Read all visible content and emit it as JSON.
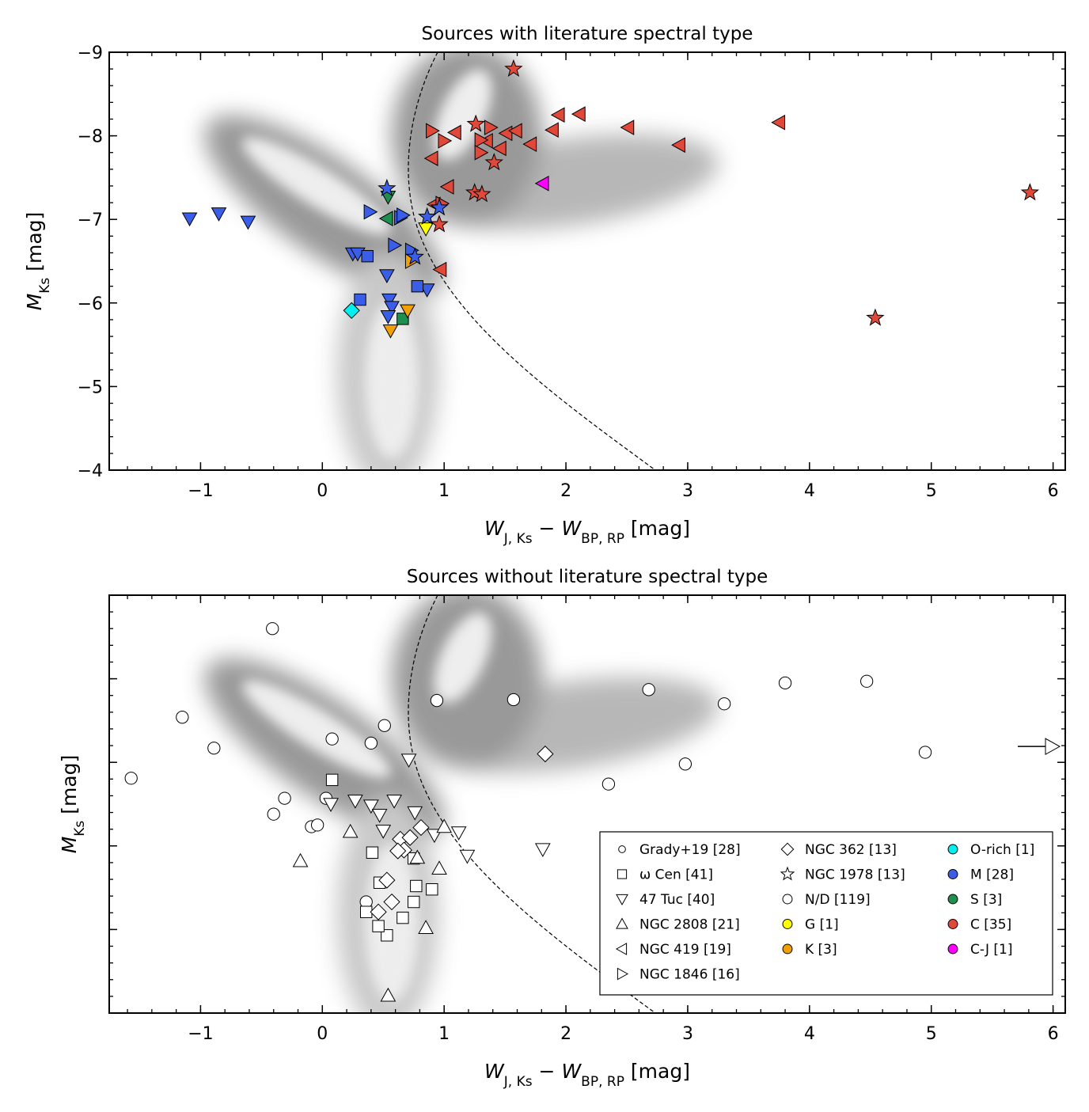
{
  "chart_data": [
    {
      "type": "scatter",
      "title": "Sources with literature spectral type",
      "xlabel": [
        {
          "text": "W"
        },
        {
          "text": "J, Ks",
          "sub": true
        },
        {
          "text": " − "
        },
        {
          "text": "W"
        },
        {
          "text": "BP, RP",
          "sub": true
        },
        {
          "text": " [mag]"
        }
      ],
      "ylabel": [
        {
          "text": "M"
        },
        {
          "text": "Ks",
          "sub": true
        },
        {
          "text": " [mag]"
        }
      ],
      "xlim": [
        -1.75,
        6.1
      ],
      "ylim": [
        -4,
        -9
      ],
      "xticks": [
        {
          "value": -1,
          "label": "−1"
        },
        0,
        1,
        2,
        3,
        4,
        5,
        6
      ],
      "yticks": [
        {
          "value": -9,
          "label": "−9"
        },
        {
          "value": -8,
          "label": "−8"
        },
        {
          "value": -7,
          "label": "−7"
        },
        {
          "value": -6,
          "label": "−6"
        },
        {
          "value": -5,
          "label": "−5"
        },
        {
          "value": -4,
          "label": "−4"
        }
      ],
      "ytick_labels": true,
      "series": [
        {
          "marker": "left",
          "color": "#e0483a",
          "x": [
            1.94,
            2.11,
            2.51,
            2.93,
            3.75,
            1.09,
            0.9,
            1.35,
            1.51,
            1.59,
            1.89,
            1.71,
            1.46,
            1.03,
            0.97,
            0.92
          ],
          "values": [
            -8.25,
            -8.26,
            -8.1,
            -7.89,
            -8.16,
            -8.04,
            -7.73,
            -7.94,
            -8.03,
            -8.06,
            -8.07,
            -7.9,
            -7.85,
            -7.39,
            -6.4,
            -7.18
          ]
        },
        {
          "marker": "right",
          "color": "#e0483a",
          "x": [
            0.9,
            1.0,
            1.3,
            1.3,
            1.38,
            0.98
          ],
          "values": [
            -8.06,
            -7.94,
            -7.95,
            -7.8,
            -8.1,
            -7.19
          ]
        },
        {
          "marker": "left",
          "color": "#ff00ff",
          "x": [
            1.81
          ],
          "values": [
            -7.43
          ]
        },
        {
          "marker": "down",
          "color": "#3a5ee8",
          "x": [
            -1.09,
            -0.85,
            -0.61,
            0.53,
            0.55,
            0.57,
            0.54,
            0.86,
            0.25,
            0.29
          ],
          "values": [
            -7.01,
            -7.07,
            -6.97,
            -6.33,
            -6.04,
            -5.95,
            -5.84,
            -6.16,
            -6.59,
            -6.59
          ]
        },
        {
          "marker": "right",
          "color": "#3a5ee8",
          "x": [
            0.39,
            0.64,
            0.59,
            0.73,
            0.66
          ],
          "values": [
            -7.09,
            -7.02,
            -6.69,
            -6.63,
            -7.05
          ]
        },
        {
          "marker": "square",
          "color": "#3a5ee8",
          "x": [
            0.37,
            0.31,
            0.78
          ],
          "values": [
            -6.56,
            -6.04,
            -6.2
          ]
        },
        {
          "marker": "left",
          "color": "#1f8f4f",
          "x": [
            0.53
          ],
          "values": [
            -7.01
          ]
        },
        {
          "marker": "down",
          "color": "#1f8f4f",
          "x": [
            0.54
          ],
          "values": [
            -7.27
          ]
        },
        {
          "marker": "square",
          "color": "#1f8f4f",
          "x": [
            0.66
          ],
          "values": [
            -5.81
          ]
        },
        {
          "marker": "diamond",
          "color": "#00f0f0",
          "x": [
            0.24
          ],
          "values": [
            -5.91
          ]
        },
        {
          "marker": "down",
          "color": "#ffff00",
          "x": [
            0.85
          ],
          "values": [
            -6.89
          ]
        },
        {
          "marker": "down",
          "color": "#f0a000",
          "x": [
            0.56,
            0.7
          ],
          "values": [
            -5.67,
            -5.91
          ]
        },
        {
          "marker": "right",
          "color": "#f0a000",
          "x": [
            0.73
          ],
          "values": [
            -6.5
          ]
        },
        {
          "marker": "star",
          "color": "#3a5ee8",
          "x": [
            0.53,
            0.86,
            0.96,
            0.76
          ],
          "values": [
            -7.37,
            -7.03,
            -7.14,
            -6.55
          ]
        },
        {
          "marker": "star",
          "color": "#e0483a",
          "x": [
            1.57,
            1.26,
            1.41,
            1.25,
            1.31,
            0.96,
            5.81,
            4.54
          ],
          "values": [
            -8.8,
            -8.14,
            -7.68,
            -7.32,
            -7.3,
            -6.94,
            -7.32,
            -5.82
          ]
        }
      ]
    },
    {
      "type": "scatter",
      "title": "Sources without literature spectral type",
      "xlabel": [
        {
          "text": "W"
        },
        {
          "text": "J, Ks",
          "sub": true
        },
        {
          "text": " − "
        },
        {
          "text": "W"
        },
        {
          "text": "BP, RP",
          "sub": true
        },
        {
          "text": " [mag]"
        }
      ],
      "ylabel": [
        {
          "text": "M"
        },
        {
          "text": "Ks",
          "sub": true
        },
        {
          "text": " [mag]"
        }
      ],
      "xlim": [
        -1.75,
        6.1
      ],
      "ylim": [
        -4,
        -9
      ],
      "xticks": [
        {
          "value": -1,
          "label": "−1"
        },
        0,
        1,
        2,
        3,
        4,
        5,
        6
      ],
      "yticks": [
        -9,
        -8,
        -7,
        -6,
        -5,
        -4
      ],
      "ytick_labels": false,
      "series": [
        {
          "marker": "circle",
          "color": "#ffffff",
          "x": [
            -0.41,
            -1.15,
            -0.89,
            -1.57,
            0.08,
            0.4,
            0.51,
            0.94,
            1.57,
            -0.31,
            -0.4,
            -0.09,
            -0.04,
            0.03,
            0.36,
            2.35,
            2.68,
            2.98,
            3.3,
            3.8,
            4.47,
            4.95
          ],
          "values": [
            -8.6,
            -7.54,
            -7.17,
            -6.81,
            -7.28,
            -7.23,
            -7.44,
            -7.74,
            -7.75,
            -6.57,
            -6.38,
            -6.23,
            -6.25,
            -6.57,
            -5.33,
            -6.74,
            -7.87,
            -6.98,
            -7.7,
            -7.95,
            -7.97,
            -7.12
          ]
        },
        {
          "marker": "square",
          "color": "#ffffff",
          "x": [
            0.08,
            0.41,
            0.9,
            0.53,
            0.36,
            0.46,
            0.75,
            0.66,
            0.75,
            0.47,
            0.77
          ],
          "values": [
            -6.79,
            -5.92,
            -5.48,
            -4.93,
            -5.21,
            -5.04,
            -5.85,
            -5.14,
            -5.33,
            -5.56,
            -5.52
          ]
        },
        {
          "marker": "down",
          "color": "#ffffff",
          "x": [
            0.71,
            0.07,
            0.27,
            0.4,
            0.47,
            0.59,
            0.76,
            0.92,
            1.12,
            1.19,
            1.81,
            0.5
          ],
          "values": [
            -7.03,
            -6.5,
            -6.54,
            -6.48,
            -6.37,
            -6.54,
            -6.4,
            -6.13,
            -6.16,
            -5.88,
            -5.96,
            -6.18
          ]
        },
        {
          "marker": "up",
          "color": "#ffffff",
          "x": [
            -0.18,
            0.23,
            1.0,
            0.96,
            0.85,
            0.54,
            0.78
          ],
          "values": [
            -5.82,
            -6.17,
            -6.23,
            -5.73,
            -5.02,
            -4.21,
            -5.86
          ]
        },
        {
          "marker": "diamond",
          "color": "#ffffff",
          "x": [
            1.83,
            0.81,
            0.64,
            0.72,
            0.67,
            0.53,
            0.57,
            0.46,
            0.62
          ],
          "values": [
            -7.1,
            -6.22,
            -6.08,
            -6.1,
            -5.95,
            -5.59,
            -5.33,
            -5.21,
            -5.94
          ]
        }
      ],
      "offscale_arrow": {
        "marker": "right",
        "color": "#ffffff",
        "y": -7.19
      },
      "legend": {
        "position": "lower right",
        "ncol": 3,
        "entries": [
          {
            "name": "Grady+19 [28]",
            "marker": "circle-small",
            "color": "#ffffff"
          },
          {
            "name": "ω Cen [41]",
            "marker": "square",
            "color": "#ffffff"
          },
          {
            "name": "47 Tuc [40]",
            "marker": "down",
            "color": "#ffffff"
          },
          {
            "name": "NGC 2808 [21]",
            "marker": "up",
            "color": "#ffffff"
          },
          {
            "name": "NGC 419 [19]",
            "marker": "left",
            "color": "#ffffff"
          },
          {
            "name": "NGC 1846 [16]",
            "marker": "right",
            "color": "#ffffff"
          },
          {
            "name": "NGC 362 [13]",
            "marker": "diamond",
            "color": "#ffffff"
          },
          {
            "name": "NGC 1978 [13]",
            "marker": "star",
            "color": "#ffffff"
          },
          {
            "name": "N/D [119]",
            "marker": "circle",
            "color": "#ffffff"
          },
          {
            "name": "G [1]",
            "marker": "circle",
            "color": "#ffff00"
          },
          {
            "name": "K [3]",
            "marker": "circle",
            "color": "#f0a000"
          },
          {
            "name": "O-rich [1]",
            "marker": "circle",
            "color": "#00f0f0"
          },
          {
            "name": "M [28]",
            "marker": "circle",
            "color": "#3a5ee8"
          },
          {
            "name": "S [3]",
            "marker": "circle",
            "color": "#1f8f4f"
          },
          {
            "name": "C [35]",
            "marker": "circle",
            "color": "#e0483a"
          },
          {
            "name": "C-J [1]",
            "marker": "circle",
            "color": "#ff00ff"
          }
        ]
      }
    }
  ]
}
